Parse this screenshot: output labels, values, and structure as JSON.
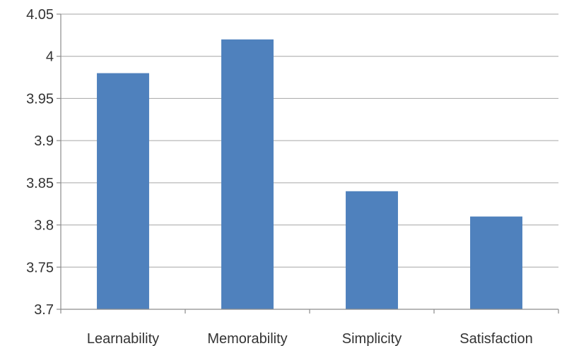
{
  "chart_data": {
    "type": "bar",
    "title": "",
    "xlabel": "",
    "ylabel": "",
    "categories": [
      "Learnability",
      "Memorability",
      "Simplicity",
      "Satisfaction"
    ],
    "values": [
      3.98,
      4.02,
      3.84,
      3.81
    ],
    "ylim": [
      3.7,
      4.05
    ],
    "yticks": [
      "3.7",
      "3.75",
      "3.8",
      "3.85",
      "3.9",
      "3.95",
      "4",
      "4.05"
    ],
    "grid": true,
    "legend": "none",
    "bar_color": "#4f81bd"
  }
}
